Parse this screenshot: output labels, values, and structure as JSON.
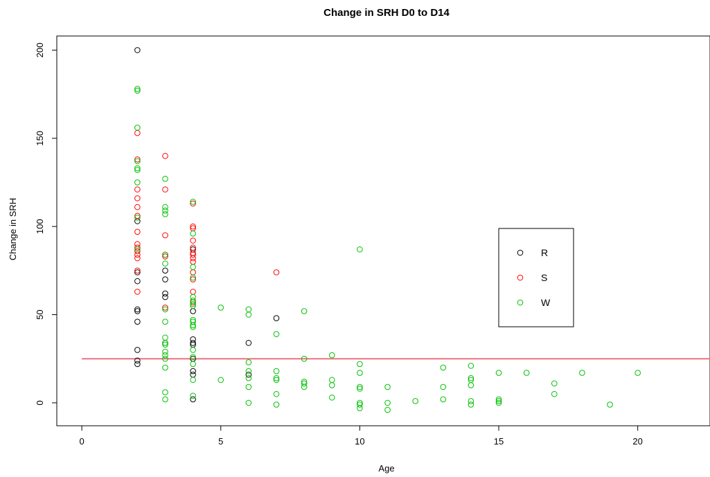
{
  "chart_data": {
    "type": "scatter",
    "title": "Change in SRH D0 to D14",
    "xlabel": "Age",
    "ylabel": "Change in SRH",
    "xlim": [
      -0.9,
      22.6
    ],
    "ylim": [
      -13,
      208
    ],
    "x_ticks": [
      0,
      5,
      10,
      15,
      20
    ],
    "y_ticks": [
      0,
      50,
      100,
      150,
      200
    ],
    "grid": false,
    "legend_position": "right",
    "reference_line": {
      "orientation": "horizontal",
      "y": 25,
      "color": "#f07080"
    },
    "series": [
      {
        "name": "R",
        "color": "#000000",
        "points": [
          [
            2,
            200
          ],
          [
            2,
            103
          ],
          [
            2,
            74
          ],
          [
            2,
            69
          ],
          [
            2,
            53
          ],
          [
            2,
            52
          ],
          [
            2,
            46
          ],
          [
            2,
            30
          ],
          [
            2,
            24
          ],
          [
            2,
            22
          ],
          [
            3,
            75
          ],
          [
            3,
            70
          ],
          [
            3,
            62
          ],
          [
            3,
            60
          ],
          [
            3,
            34
          ],
          [
            4,
            87
          ],
          [
            4,
            52
          ],
          [
            4,
            36
          ],
          [
            4,
            34
          ],
          [
            4,
            33
          ],
          [
            4,
            25
          ],
          [
            4,
            18
          ],
          [
            4,
            16
          ],
          [
            4,
            2
          ],
          [
            6,
            34
          ],
          [
            6,
            16
          ],
          [
            7,
            48
          ]
        ]
      },
      {
        "name": "S",
        "color": "#ff0000",
        "points": [
          [
            2,
            153
          ],
          [
            2,
            138
          ],
          [
            2,
            121
          ],
          [
            2,
            116
          ],
          [
            2,
            111
          ],
          [
            2,
            106
          ],
          [
            2,
            97
          ],
          [
            2,
            90
          ],
          [
            2,
            88
          ],
          [
            2,
            86
          ],
          [
            2,
            84
          ],
          [
            2,
            82
          ],
          [
            2,
            75
          ],
          [
            2,
            63
          ],
          [
            3,
            140
          ],
          [
            3,
            121
          ],
          [
            3,
            95
          ],
          [
            3,
            84
          ],
          [
            3,
            83
          ],
          [
            3,
            54
          ],
          [
            4,
            113
          ],
          [
            4,
            100
          ],
          [
            4,
            99
          ],
          [
            4,
            92
          ],
          [
            4,
            88
          ],
          [
            4,
            85
          ],
          [
            4,
            84
          ],
          [
            4,
            82
          ],
          [
            4,
            80
          ],
          [
            4,
            74
          ],
          [
            4,
            70
          ],
          [
            4,
            63
          ],
          [
            4,
            57
          ],
          [
            7,
            74
          ]
        ]
      },
      {
        "name": "W",
        "color": "#00c000",
        "points": [
          [
            2,
            178
          ],
          [
            2,
            177
          ],
          [
            2,
            156
          ],
          [
            2,
            137
          ],
          [
            2,
            133
          ],
          [
            2,
            132
          ],
          [
            2,
            125
          ],
          [
            2,
            105
          ],
          [
            2,
            87
          ],
          [
            3,
            127
          ],
          [
            3,
            111
          ],
          [
            3,
            109
          ],
          [
            3,
            107
          ],
          [
            3,
            84
          ],
          [
            3,
            79
          ],
          [
            3,
            53
          ],
          [
            3,
            46
          ],
          [
            3,
            37
          ],
          [
            3,
            34
          ],
          [
            3,
            33
          ],
          [
            3,
            29
          ],
          [
            3,
            27
          ],
          [
            3,
            25
          ],
          [
            3,
            20
          ],
          [
            3,
            6
          ],
          [
            3,
            2
          ],
          [
            4,
            114
          ],
          [
            4,
            96
          ],
          [
            4,
            77
          ],
          [
            4,
            71
          ],
          [
            4,
            60
          ],
          [
            4,
            58
          ],
          [
            4,
            56
          ],
          [
            4,
            55
          ],
          [
            4,
            47
          ],
          [
            4,
            46
          ],
          [
            4,
            44
          ],
          [
            4,
            43
          ],
          [
            4,
            30
          ],
          [
            4,
            26
          ],
          [
            4,
            22
          ],
          [
            4,
            13
          ],
          [
            4,
            4
          ],
          [
            5,
            54
          ],
          [
            5,
            13
          ],
          [
            6,
            53
          ],
          [
            6,
            50
          ],
          [
            6,
            23
          ],
          [
            6,
            18
          ],
          [
            6,
            14
          ],
          [
            6,
            9
          ],
          [
            6,
            0
          ],
          [
            7,
            39
          ],
          [
            7,
            18
          ],
          [
            7,
            14
          ],
          [
            7,
            13
          ],
          [
            7,
            5
          ],
          [
            7,
            -1
          ],
          [
            8,
            52
          ],
          [
            8,
            25
          ],
          [
            8,
            12
          ],
          [
            8,
            11
          ],
          [
            8,
            9
          ],
          [
            9,
            27
          ],
          [
            9,
            13
          ],
          [
            9,
            10
          ],
          [
            9,
            3
          ],
          [
            10,
            87
          ],
          [
            10,
            22
          ],
          [
            10,
            17
          ],
          [
            10,
            9
          ],
          [
            10,
            8
          ],
          [
            10,
            0
          ],
          [
            10,
            -1
          ],
          [
            10,
            -3
          ],
          [
            11,
            9
          ],
          [
            11,
            0
          ],
          [
            11,
            -4
          ],
          [
            12,
            1
          ],
          [
            13,
            20
          ],
          [
            13,
            9
          ],
          [
            13,
            2
          ],
          [
            14,
            21
          ],
          [
            14,
            14
          ],
          [
            14,
            13
          ],
          [
            14,
            10
          ],
          [
            14,
            1
          ],
          [
            14,
            -1
          ],
          [
            15,
            17
          ],
          [
            15,
            2
          ],
          [
            15,
            1
          ],
          [
            15,
            0
          ],
          [
            16,
            17
          ],
          [
            17,
            11
          ],
          [
            17,
            5
          ],
          [
            18,
            17
          ],
          [
            19,
            -1
          ],
          [
            20,
            17
          ]
        ]
      }
    ]
  }
}
